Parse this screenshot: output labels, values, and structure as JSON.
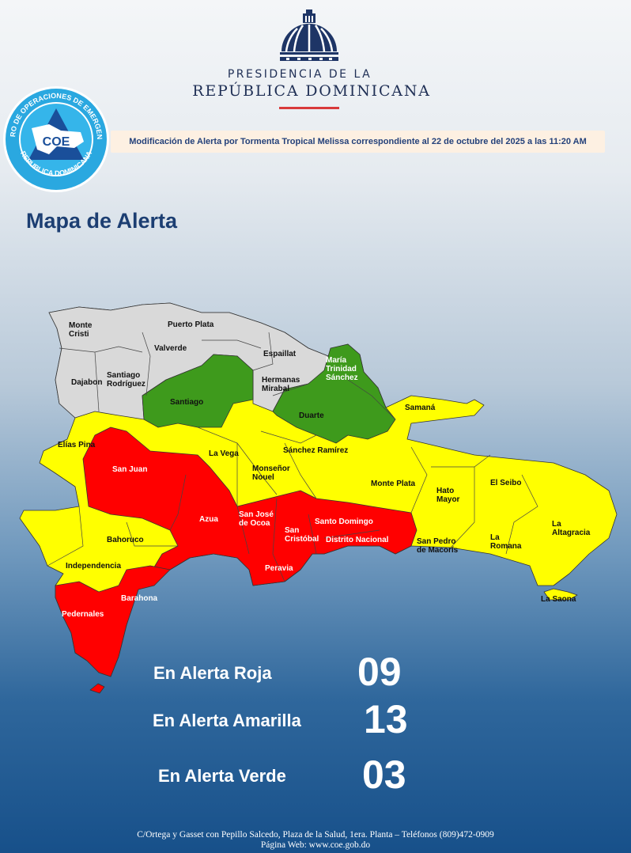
{
  "header": {
    "presidencia_line1": "PRESIDENCIA DE LA",
    "presidencia_line2": "REPÚBLICA DOMINICANA",
    "coe_logo_text": "CENTRO DE OPERACIONES DE EMERGENCIAS · COE · REPUBLICA DOMINICANA · PREPARACION · RESPUESTA · RECUPERACION · VOCERO OFICIAL",
    "banner": "Modificación de Alerta por Tormenta Tropical Melissa correspondiente al 22 de octubre del 2025 a las 11:20 AM"
  },
  "map": {
    "title": "Mapa de Alerta",
    "colors": {
      "roja": "#ff0000",
      "amarilla": "#ffff00",
      "verde": "#3e9a1c",
      "sin_alerta": "#d9d9d9"
    },
    "provinces": {
      "gray": [
        "Monte Cristi",
        "Puerto Plata",
        "Valverde",
        "Espaillat",
        "Dajabon",
        "Santiago Rodríguez",
        "Hermanas Mirabal"
      ],
      "green": [
        "Santiago",
        "María Trinidad Sánchez",
        "Duarte"
      ],
      "yellow": [
        "Samaná",
        "Elías Pina",
        "La Vega",
        "Sánchez Ramírez",
        "Monseñor Nouel",
        "Monte Plata",
        "Hato Mayor",
        "El Seibo",
        "La Altagracia",
        "Bahoruco",
        "Independencia",
        "San Pedro de Macorís",
        "La Romana",
        "La Saona"
      ],
      "red": [
        "San Juan",
        "Azua",
        "San José de Ocoa",
        "San Cristóbal",
        "Santo Domingo",
        "Distrito Nacional",
        "Peravia",
        "Barahona",
        "Pedernales"
      ]
    }
  },
  "counts": [
    {
      "label": "En Alerta Roja",
      "value": "09"
    },
    {
      "label": "En Alerta Amarilla",
      "value": "13"
    },
    {
      "label": "En Alerta Verde",
      "value": "03"
    }
  ],
  "footer": {
    "address": "C/Ortega y Gasset con Pepillo Salcedo, Plaza de la Salud, 1era. Planta – Teléfonos (809)472-0909",
    "web": "Página Web: www.coe.gob.do"
  }
}
